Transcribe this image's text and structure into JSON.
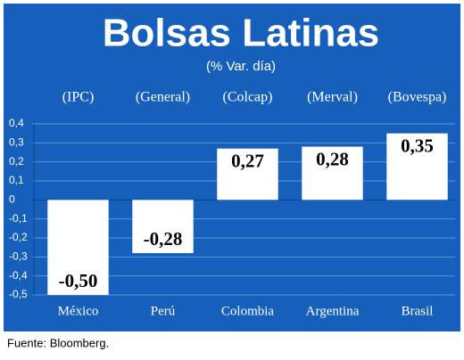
{
  "chart_data": {
    "type": "bar",
    "title": "Bolsas Latinas",
    "subtitle": "(% Var. día)",
    "index_names": [
      "(IPC)",
      "(General)",
      "(Colcap)",
      "(Merval)",
      "(Bovespa)"
    ],
    "categories": [
      "México",
      "Perú",
      "Colombia",
      "Argentina",
      "Brasil"
    ],
    "values": [
      -0.5,
      -0.28,
      0.27,
      0.28,
      0.35
    ],
    "value_labels": [
      "-0,50",
      "-0,28",
      "0,27",
      "0,28",
      "0,35"
    ],
    "color": "#ffffff",
    "ylim": [
      -0.5,
      0.4
    ],
    "yticks": [
      {
        "value": 0.4,
        "label": "0,4"
      },
      {
        "value": 0.3,
        "label": "0,3"
      },
      {
        "value": 0.2,
        "label": "0,2"
      },
      {
        "value": 0.1,
        "label": "0,1"
      },
      0,
      {
        "value": -0.1,
        "label": "-0,1"
      },
      {
        "value": -0.2,
        "label": "-0,2"
      },
      {
        "value": -0.3,
        "label": "-0,3"
      },
      {
        "value": -0.4,
        "label": "-0,4"
      },
      {
        "value": -0.5,
        "label": "-0,5"
      }
    ],
    "grid": true,
    "source": "Fuente: Bloomberg."
  }
}
